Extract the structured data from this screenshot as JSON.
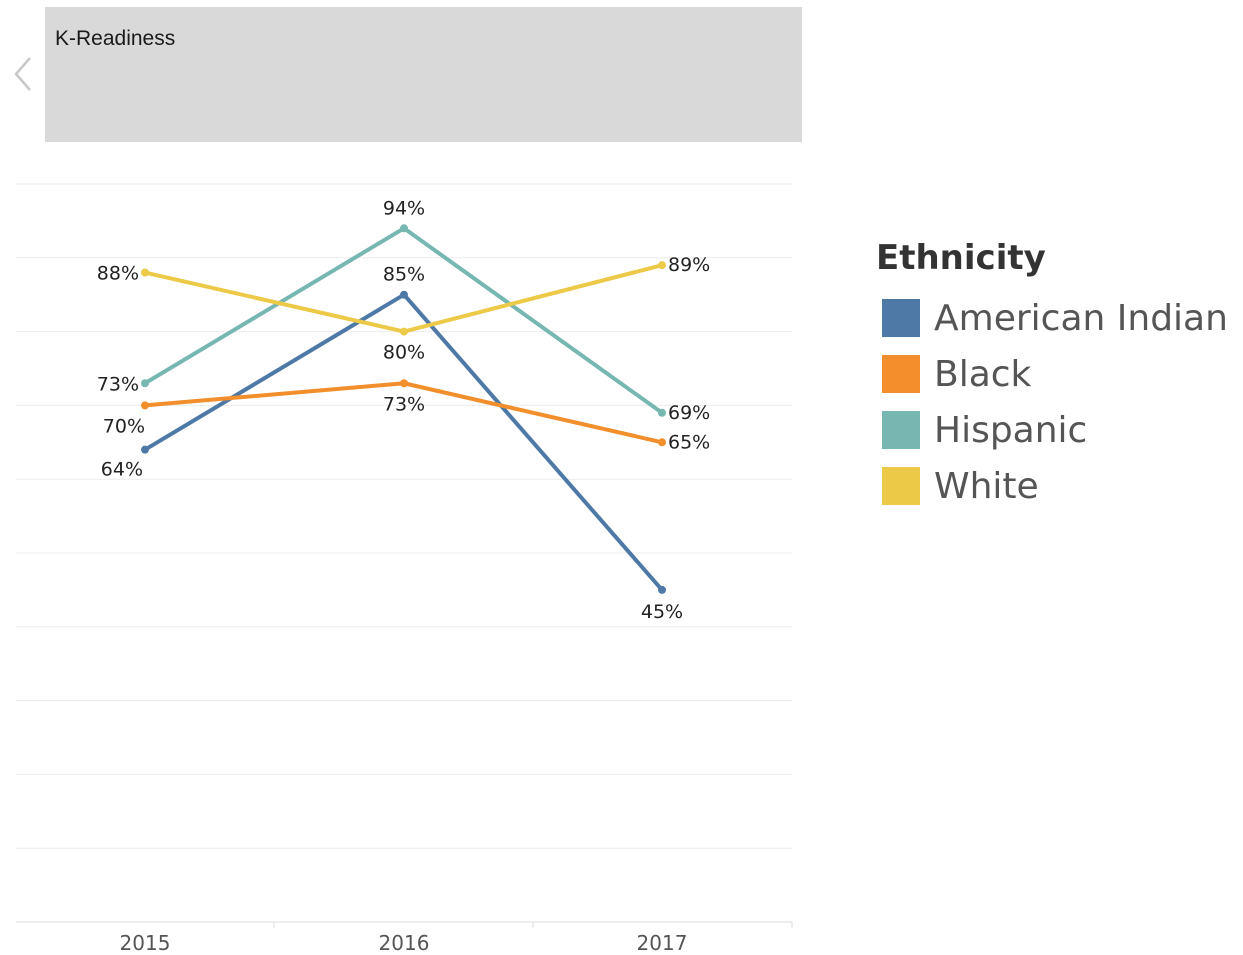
{
  "header": {
    "title": "K-Readiness"
  },
  "legend": {
    "title": "Ethnicity",
    "items": [
      {
        "label": "American Indian",
        "color": "#4e79a7"
      },
      {
        "label": "Black",
        "color": "#f28e2b"
      },
      {
        "label": "Hispanic",
        "color": "#76b7b2"
      },
      {
        "label": "White",
        "color": "#edc948"
      }
    ]
  },
  "chart_data": {
    "type": "line",
    "x": [
      "2015",
      "2016",
      "2017"
    ],
    "ylim": [
      0,
      100
    ],
    "grid": true,
    "legend_position": "right",
    "series": [
      {
        "name": "American Indian",
        "color": "#4e79a7",
        "values": [
          64,
          85,
          45
        ],
        "labels": [
          "64%",
          "85%",
          "45%"
        ]
      },
      {
        "name": "Black",
        "color": "#f28e2b",
        "values": [
          70,
          73,
          65
        ],
        "labels": [
          "70%",
          "73%",
          "65%"
        ]
      },
      {
        "name": "Hispanic",
        "color": "#76b7b2",
        "values": [
          73,
          94,
          69
        ],
        "labels": [
          "73%",
          "94%",
          "69%"
        ]
      },
      {
        "name": "White",
        "color": "#edc948",
        "values": [
          88,
          80,
          89
        ],
        "labels": [
          "88%",
          "80%",
          "89%"
        ]
      }
    ]
  }
}
